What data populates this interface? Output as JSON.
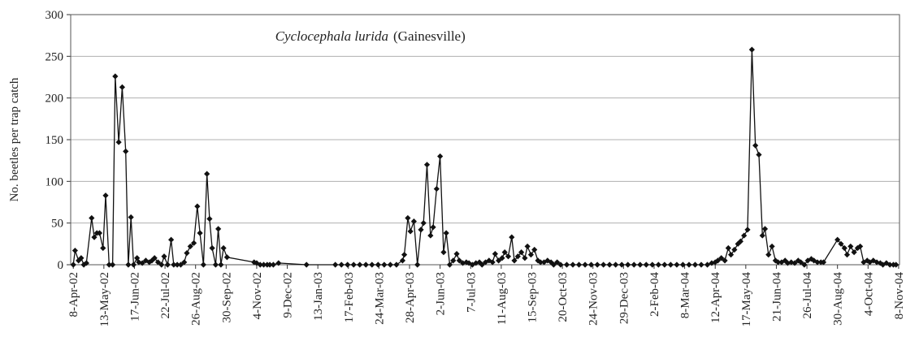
{
  "chart_data": {
    "type": "line",
    "title": "Cyclocephala lurida",
    "subtitle": "(Gainesville)",
    "y_label": "No. beetles per trap catch",
    "xlim": [
      "2002-04-05",
      "2004-11-09"
    ],
    "xticks": [
      {
        "value": "2002-04-08",
        "label": "8-Apr-02"
      },
      {
        "value": "2002-05-13",
        "label": "13-May-02"
      },
      {
        "value": "2002-06-17",
        "label": "17-Jun-02"
      },
      {
        "value": "2002-07-22",
        "label": "22-Jul-02"
      },
      {
        "value": "2002-08-26",
        "label": "26-Aug-02"
      },
      {
        "value": "2002-09-30",
        "label": "30-Sep-02"
      },
      {
        "value": "2002-11-04",
        "label": "4-Nov-02"
      },
      {
        "value": "2002-12-09",
        "label": "9-Dec-02"
      },
      {
        "value": "2003-01-13",
        "label": "13-Jan-03"
      },
      {
        "value": "2003-02-17",
        "label": "17-Feb-03"
      },
      {
        "value": "2003-03-24",
        "label": "24-Mar-03"
      },
      {
        "value": "2003-04-28",
        "label": "28-Apr-03"
      },
      {
        "value": "2003-06-02",
        "label": "2-Jun-03"
      },
      {
        "value": "2003-07-07",
        "label": "7-Jul-03"
      },
      {
        "value": "2003-08-11",
        "label": "11-Aug-03"
      },
      {
        "value": "2003-09-15",
        "label": "15-Sep-03"
      },
      {
        "value": "2003-10-20",
        "label": "20-Oct-03"
      },
      {
        "value": "2003-11-24",
        "label": "24-Nov-03"
      },
      {
        "value": "2003-12-29",
        "label": "29-Dec-03"
      },
      {
        "value": "2004-02-02",
        "label": "2-Feb-04"
      },
      {
        "value": "2004-03-08",
        "label": "8-Mar-04"
      },
      {
        "value": "2004-04-12",
        "label": "12-Apr-04"
      },
      {
        "value": "2004-05-17",
        "label": "17-May-04"
      },
      {
        "value": "2004-06-21",
        "label": "21-Jun-04"
      },
      {
        "value": "2004-07-26",
        "label": "26-Jul-04"
      },
      {
        "value": "2004-08-30",
        "label": "30-Aug-04"
      },
      {
        "value": "2004-10-04",
        "label": "4-Oct-04"
      },
      {
        "value": "2004-11-08",
        "label": "8-Nov-04"
      }
    ],
    "ylim": [
      0,
      300
    ],
    "yticks": [
      0,
      50,
      100,
      150,
      200,
      250,
      300
    ],
    "grid": true,
    "x": [
      "2002-04-08",
      "2002-04-10",
      "2002-04-14",
      "2002-04-17",
      "2002-04-20",
      "2002-04-23",
      "2002-04-29",
      "2002-05-02",
      "2002-05-05",
      "2002-05-08",
      "2002-05-12",
      "2002-05-15",
      "2002-05-19",
      "2002-05-23",
      "2002-05-26",
      "2002-05-30",
      "2002-06-03",
      "2002-06-07",
      "2002-06-10",
      "2002-06-13",
      "2002-06-16",
      "2002-06-20",
      "2002-06-22",
      "2002-06-26",
      "2002-06-30",
      "2002-07-04",
      "2002-07-07",
      "2002-07-10",
      "2002-07-14",
      "2002-07-18",
      "2002-07-21",
      "2002-07-25",
      "2002-07-29",
      "2002-08-01",
      "2002-08-05",
      "2002-08-09",
      "2002-08-13",
      "2002-08-16",
      "2002-08-20",
      "2002-08-24",
      "2002-08-28",
      "2002-08-31",
      "2002-09-04",
      "2002-09-08",
      "2002-09-11",
      "2002-09-14",
      "2002-09-18",
      "2002-09-21",
      "2002-09-24",
      "2002-09-27",
      "2002-10-01",
      "2002-11-01",
      "2002-11-04",
      "2002-11-08",
      "2002-11-12",
      "2002-11-16",
      "2002-11-19",
      "2002-11-23",
      "2002-11-29",
      "2002-12-31",
      "2003-02-02",
      "2003-02-09",
      "2003-02-16",
      "2003-02-23",
      "2003-03-02",
      "2003-03-09",
      "2003-03-16",
      "2003-03-23",
      "2003-03-30",
      "2003-04-06",
      "2003-04-13",
      "2003-04-20",
      "2003-04-22",
      "2003-04-26",
      "2003-04-29",
      "2003-05-03",
      "2003-05-07",
      "2003-05-11",
      "2003-05-14",
      "2003-05-18",
      "2003-05-22",
      "2003-05-25",
      "2003-05-29",
      "2003-06-02",
      "2003-06-06",
      "2003-06-09",
      "2003-06-13",
      "2003-06-17",
      "2003-06-21",
      "2003-06-24",
      "2003-06-28",
      "2003-07-02",
      "2003-07-05",
      "2003-07-09",
      "2003-07-13",
      "2003-07-17",
      "2003-07-20",
      "2003-07-24",
      "2003-07-28",
      "2003-08-01",
      "2003-08-04",
      "2003-08-08",
      "2003-08-12",
      "2003-08-15",
      "2003-08-19",
      "2003-08-23",
      "2003-08-26",
      "2003-08-30",
      "2003-09-03",
      "2003-09-07",
      "2003-09-10",
      "2003-09-14",
      "2003-09-18",
      "2003-09-22",
      "2003-09-25",
      "2003-09-29",
      "2003-10-03",
      "2003-10-07",
      "2003-10-10",
      "2003-10-14",
      "2003-10-18",
      "2003-10-25",
      "2003-11-01",
      "2003-11-08",
      "2003-11-15",
      "2003-11-22",
      "2003-11-29",
      "2003-12-06",
      "2003-12-13",
      "2003-12-20",
      "2003-12-27",
      "2004-01-03",
      "2004-01-10",
      "2004-01-17",
      "2004-01-24",
      "2004-01-31",
      "2004-02-07",
      "2004-02-14",
      "2004-02-21",
      "2004-02-28",
      "2004-03-06",
      "2004-03-13",
      "2004-03-20",
      "2004-03-27",
      "2004-04-03",
      "2004-04-08",
      "2004-04-12",
      "2004-04-15",
      "2004-04-19",
      "2004-04-23",
      "2004-04-27",
      "2004-04-30",
      "2004-05-04",
      "2004-05-08",
      "2004-05-11",
      "2004-05-15",
      "2004-05-19",
      "2004-05-24",
      "2004-05-28",
      "2004-06-01",
      "2004-06-05",
      "2004-06-08",
      "2004-06-12",
      "2004-06-16",
      "2004-06-20",
      "2004-06-23",
      "2004-06-27",
      "2004-07-01",
      "2004-07-04",
      "2004-07-08",
      "2004-07-12",
      "2004-07-16",
      "2004-07-19",
      "2004-07-23",
      "2004-07-27",
      "2004-07-31",
      "2004-08-03",
      "2004-08-07",
      "2004-08-11",
      "2004-08-14",
      "2004-08-30",
      "2004-09-03",
      "2004-09-07",
      "2004-09-10",
      "2004-09-14",
      "2004-09-18",
      "2004-09-22",
      "2004-09-25",
      "2004-09-29",
      "2004-10-03",
      "2004-10-06",
      "2004-10-10",
      "2004-10-14",
      "2004-10-18",
      "2004-10-21",
      "2004-10-25",
      "2004-10-29",
      "2004-11-02",
      "2004-11-05"
    ],
    "series": [
      {
        "color": "#111111",
        "values": [
          0,
          17,
          5,
          8,
          0,
          2,
          56,
          33,
          38,
          38,
          20,
          83,
          0,
          0,
          226,
          147,
          213,
          136,
          0,
          57,
          0,
          8,
          3,
          2,
          5,
          3,
          5,
          8,
          3,
          0,
          10,
          0,
          30,
          0,
          0,
          0,
          3,
          14,
          22,
          26,
          70,
          38,
          0,
          109,
          55,
          20,
          0,
          43,
          0,
          20,
          9,
          3,
          2,
          0,
          0,
          0,
          0,
          0,
          2,
          0,
          0,
          0,
          0,
          0,
          0,
          0,
          0,
          0,
          0,
          0,
          0,
          5,
          12,
          56,
          40,
          52,
          0,
          42,
          50,
          120,
          35,
          45,
          91,
          130,
          15,
          38,
          0,
          5,
          13,
          5,
          2,
          3,
          2,
          0,
          2,
          3,
          0,
          3,
          5,
          3,
          13,
          5,
          8,
          15,
          10,
          33,
          5,
          10,
          15,
          8,
          22,
          12,
          18,
          5,
          3,
          3,
          5,
          3,
          0,
          3,
          0,
          0,
          0,
          0,
          0,
          0,
          0,
          0,
          0,
          0,
          0,
          0,
          0,
          0,
          0,
          0,
          0,
          0,
          0,
          0,
          0,
          0,
          0,
          0,
          0,
          2,
          3,
          5,
          8,
          5,
          20,
          12,
          18,
          25,
          28,
          35,
          42,
          258,
          143,
          132,
          35,
          43,
          12,
          22,
          5,
          3,
          3,
          5,
          2,
          3,
          2,
          5,
          3,
          0,
          5,
          7,
          5,
          3,
          3,
          3,
          30,
          25,
          20,
          12,
          22,
          15,
          20,
          22,
          3,
          5,
          3,
          5,
          3,
          2,
          0,
          2,
          0,
          0,
          0
        ]
      }
    ]
  }
}
